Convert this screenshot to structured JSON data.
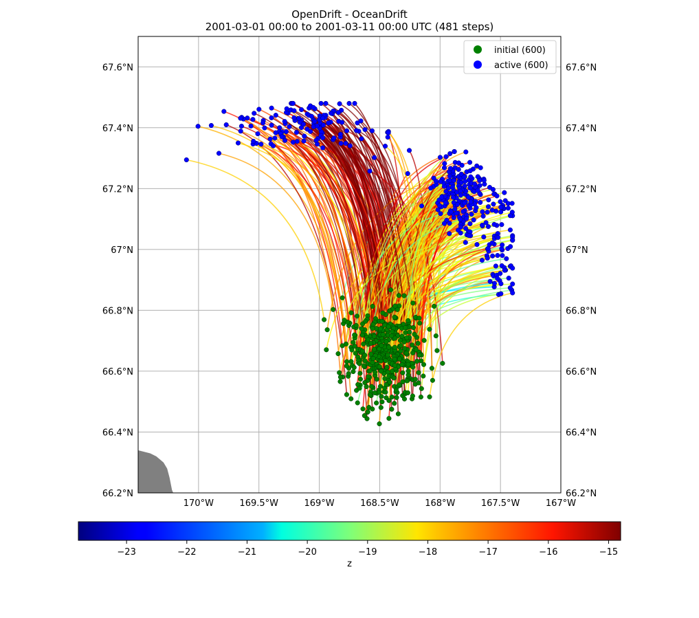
{
  "figure": {
    "title_line1": "OpenDrift - OceanDrift",
    "title_line2": "2001-03-01 00:00 to 2001-03-11 00:00 UTC (481 steps)"
  },
  "map": {
    "lon_range": [
      -170.5,
      -167.0
    ],
    "lat_range": [
      66.2,
      67.7
    ],
    "lon_ticks": [
      {
        "value": -170.0,
        "label": "170°W"
      },
      {
        "value": -169.5,
        "label": "169.5°W"
      },
      {
        "value": -169.0,
        "label": "169°W"
      },
      {
        "value": -168.5,
        "label": "168.5°W"
      },
      {
        "value": -168.0,
        "label": "168°W"
      },
      {
        "value": -167.5,
        "label": "167.5°W"
      },
      {
        "value": -167.0,
        "label": "167°W"
      }
    ],
    "lat_ticks": [
      {
        "value": 66.2,
        "label": "66.2°N"
      },
      {
        "value": 66.4,
        "label": "66.4°N"
      },
      {
        "value": 66.6,
        "label": "66.6°N"
      },
      {
        "value": 66.8,
        "label": "66.8°N"
      },
      {
        "value": 67.0,
        "label": "67°N"
      },
      {
        "value": 67.2,
        "label": "67.2°N"
      },
      {
        "value": 67.4,
        "label": "67.4°N"
      },
      {
        "value": 67.6,
        "label": "67.6°N"
      }
    ],
    "grid": true,
    "land_color": "#808080",
    "land_polygon": [
      [
        -170.5,
        66.2
      ],
      [
        -170.5,
        66.34
      ],
      [
        -170.45,
        66.335
      ],
      [
        -170.4,
        66.33
      ],
      [
        -170.35,
        66.32
      ],
      [
        -170.32,
        66.31
      ],
      [
        -170.29,
        66.3
      ],
      [
        -170.26,
        66.28
      ],
      [
        -170.24,
        66.25
      ],
      [
        -170.22,
        66.21
      ],
      [
        -170.21,
        66.2
      ]
    ]
  },
  "chart_data": {
    "type": "scatter",
    "title": "OpenDrift - OceanDrift",
    "subtitle": "2001-03-01 00:00 to 2001-03-11 00:00 UTC (481 steps)",
    "series": [
      {
        "name": "initial (600)",
        "color": "#008000",
        "count": 600,
        "cluster_center_lon_lat": [
          -168.45,
          66.65
        ],
        "lon_extent": [
          -169.05,
          -167.95
        ],
        "lat_extent": [
          66.39,
          66.88
        ]
      },
      {
        "name": "active (600)",
        "color": "#0000ff",
        "count": 600,
        "cluster_center_lon_lat": [
          -168.6,
          67.25
        ],
        "lon_extent": [
          -170.1,
          -167.4
        ],
        "lat_extent": [
          66.69,
          67.48
        ]
      }
    ],
    "trajectory_color_variable": "z",
    "colorbar": {
      "label": "z",
      "range": [
        -23.8,
        -14.8
      ],
      "ticks": [
        -23,
        -22,
        -21,
        -20,
        -19,
        -18,
        -17,
        -16,
        -15
      ],
      "colormap": "jet"
    },
    "legend_placement": "top-right"
  },
  "legend": {
    "items": [
      {
        "label": "initial (600)",
        "color": "#008000"
      },
      {
        "label": "active (600)",
        "color": "#0000ff"
      }
    ]
  },
  "colorbar": {
    "label": "z",
    "ticks": [
      {
        "value": -23,
        "label": "−23"
      },
      {
        "value": -22,
        "label": "−22"
      },
      {
        "value": -21,
        "label": "−21"
      },
      {
        "value": -20,
        "label": "−20"
      },
      {
        "value": -19,
        "label": "−19"
      },
      {
        "value": -18,
        "label": "−18"
      },
      {
        "value": -17,
        "label": "−17"
      },
      {
        "value": -16,
        "label": "−16"
      },
      {
        "value": -15,
        "label": "−15"
      }
    ]
  }
}
